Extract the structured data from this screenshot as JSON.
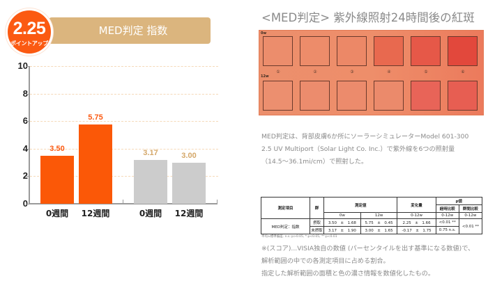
{
  "badge": {
    "value": "2.25",
    "sub": "ポイントアップ"
  },
  "header": {
    "title": "MED判定 指数"
  },
  "chart_data": {
    "type": "bar",
    "title": "MED判定 指数",
    "xlabel": "",
    "ylabel": "",
    "ylim": [
      0,
      10
    ],
    "yticks": [
      "0",
      "2",
      "4",
      "6",
      "8",
      "10"
    ],
    "grid": true,
    "categories": [
      "0週間",
      "12週間",
      "0週間",
      "12週間"
    ],
    "groups": [
      {
        "name": "摂取",
        "color": "#fb5807",
        "categories": [
          "0週間",
          "12週間"
        ],
        "values": [
          3.5,
          5.75
        ],
        "labels": [
          "3.50",
          "5.75"
        ]
      },
      {
        "name": "未摂取",
        "color": "#cccccc",
        "categories": [
          "0週間",
          "12週間"
        ],
        "values": [
          3.17,
          3.0
        ],
        "labels": [
          "3.17",
          "3.00"
        ]
      }
    ],
    "annotation": "2.25 ポイントアップ"
  },
  "right": {
    "title": "<MED判定> 紫外線照射24時間後の紅斑",
    "photo": {
      "row_labels": [
        "0w",
        "12w"
      ],
      "spot_numbers": [
        "①",
        "②",
        "③",
        "④",
        "⑤",
        "⑥"
      ],
      "row0_colors": [
        "#ec8d6c",
        "#ed8c6a",
        "#ec8867",
        "#e8694f",
        "#e65848",
        "#e2483c"
      ],
      "row1_colors": [
        "#ec8f6f",
        "#ec8c6d",
        "#ec8b6c",
        "#eb8a6b",
        "#e86458",
        "#e75e52"
      ]
    },
    "description": [
      "MED判定は、背部皮膚6か所にソーラーシミュレーターModel 601-300",
      "2.5 UV Multiport（Solar Light Co. Inc.）で紫外線を6つの照射量",
      "（14.5～36.1mi/cm）で照射した。"
    ],
    "table": {
      "headers": {
        "item": "測定項目",
        "group": "群",
        "measured": "測定値",
        "change": "変化量",
        "p_value": "p値",
        "within": "経時比較",
        "between": "群間比較",
        "w0": "0w",
        "w12": "12w",
        "range": "0-12w"
      },
      "row_label": "MED判定：指数",
      "rows": [
        {
          "group": "摂取",
          "w0": "3.50　±　1.68",
          "w12": "5.75　±　0.45",
          "change": "2.25　±　1.66",
          "within": "<0.01 **",
          "between": "<0.01 **"
        },
        {
          "group": "未摂取",
          "w0": "3.17　±　1.90",
          "w12": "3.00　±　1.65",
          "change": "-0.17　±　1.75",
          "within": "0.75 n.s.",
          "between": ""
        }
      ],
      "footnote": "平均±標準偏差. n.s.:p>0.05, *:p<0.05, **:p<0.01"
    },
    "note": [
      "※(スコア)...VISIA独自の数値 (パーセンタイルを出す基準になる数値)で、",
      "解析範囲の中での各測定項目に占める割合。",
      "指定した解析範囲の面積と色の濃さ情報を数値化したもの。"
    ]
  }
}
